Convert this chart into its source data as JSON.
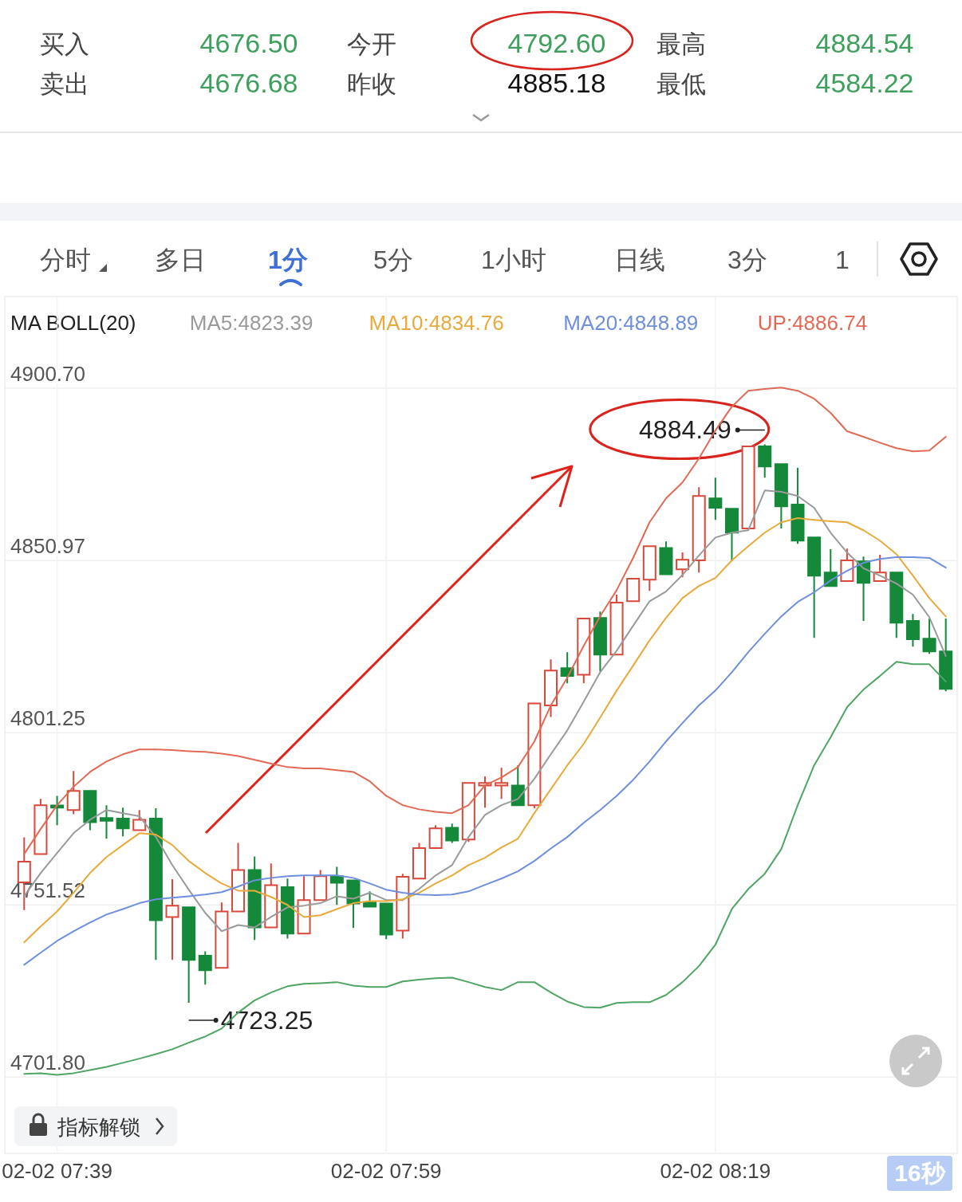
{
  "chart_data": {
    "type": "candlestick",
    "legend_title": "MA BOLL(20)",
    "categories": [
      null,
      null,
      "02-02 07:39",
      null,
      null,
      null,
      null,
      null,
      null,
      null,
      null,
      null,
      null,
      null,
      null,
      null,
      null,
      null,
      null,
      null,
      null,
      null,
      "02-02 07:59",
      null,
      null,
      null,
      null,
      null,
      null,
      null,
      null,
      null,
      null,
      null,
      null,
      null,
      null,
      null,
      null,
      null,
      null,
      null,
      "02-02 08:19",
      null,
      null,
      null,
      null,
      null,
      null,
      null,
      null,
      null,
      null,
      null,
      null,
      null,
      null
    ],
    "ohlc": [
      [
        4758,
        4771,
        4750,
        4764
      ],
      [
        4766.2,
        4782.1,
        4766,
        4780.3
      ],
      [
        4780.2,
        4783,
        4774.5,
        4779.6
      ],
      [
        4778.9,
        4790.2,
        4777.7,
        4784.4
      ],
      [
        4784.4,
        4784.4,
        4773.1,
        4775.4
      ],
      [
        4776.6,
        4780.3,
        4770.6,
        4775.8
      ],
      [
        4776.4,
        4779.6,
        4771.3,
        4773.6
      ],
      [
        4773.1,
        4778.9,
        4773.1,
        4776.1
      ],
      [
        4776.4,
        4779.4,
        4735.6,
        4747.1
      ],
      [
        4748,
        4758.9,
        4735.6,
        4751.3
      ],
      [
        4750.8,
        4750.8,
        4723.25,
        4735.6
      ],
      [
        4736.8,
        4738.1,
        4728.5,
        4732.6
      ],
      [
        4733.3,
        4752.2,
        4733.3,
        4749.6
      ],
      [
        4749.6,
        4769.4,
        4749.6,
        4761.6
      ],
      [
        4761.6,
        4765.5,
        4741.4,
        4745
      ],
      [
        4745,
        4763.5,
        4745,
        4757.2
      ],
      [
        4756.6,
        4759.1,
        4741.8,
        4743.2
      ],
      [
        4743.2,
        4759.8,
        4743.2,
        4752.9
      ],
      [
        4752.9,
        4761.6,
        4752.9,
        4759.8
      ],
      [
        4759.8,
        4762.5,
        4751.5,
        4757.9
      ],
      [
        4758.6,
        4758.6,
        4744.8,
        4751.9
      ],
      [
        4752.2,
        4755.4,
        4750.8,
        4751
      ],
      [
        4751.9,
        4751.9,
        4741.6,
        4742.9
      ],
      [
        4744.1,
        4760.5,
        4741.8,
        4759.6
      ],
      [
        4759.1,
        4769.4,
        4759.1,
        4767.9
      ],
      [
        4767.9,
        4774.5,
        4767.9,
        4773.6
      ],
      [
        4773.8,
        4775,
        4769.4,
        4770.1
      ],
      [
        4770.4,
        4786.7,
        4769.7,
        4786.7
      ],
      [
        4786,
        4788.6,
        4779.6,
        4786.7
      ],
      [
        4786,
        4791.1,
        4782.1,
        4786.7
      ],
      [
        4786,
        4791.8,
        4780.3,
        4780.3
      ],
      [
        4780.3,
        4809.7,
        4779.4,
        4809.7
      ],
      [
        4809.1,
        4822.4,
        4805.8,
        4819.2
      ],
      [
        4819.9,
        4824.5,
        4815.5,
        4817.6
      ],
      [
        4818,
        4834.2,
        4815.5,
        4834.2
      ],
      [
        4834.4,
        4836.2,
        4818.9,
        4823.8
      ],
      [
        4823.8,
        4841.1,
        4823.8,
        4838.8
      ],
      [
        4839.2,
        4845.7,
        4839.2,
        4845.7
      ],
      [
        4845.4,
        4855.1,
        4842.2,
        4855.1
      ],
      [
        4854.6,
        4856.5,
        4847,
        4847
      ],
      [
        4848.4,
        4853.3,
        4846.1,
        4851.2
      ],
      [
        4851,
        4872.1,
        4847.5,
        4869.6
      ],
      [
        4868.9,
        4874.9,
        4862.7,
        4866.2
      ],
      [
        4865.9,
        4865.9,
        4850.7,
        4859
      ],
      [
        4860.2,
        4883.9,
        4860.2,
        4883.9
      ],
      [
        4883.9,
        4884.49,
        4874.9,
        4878.1
      ],
      [
        4878.8,
        4878.8,
        4860.2,
        4866.6
      ],
      [
        4867.1,
        4877.7,
        4855.8,
        4856.7
      ],
      [
        4857.6,
        4857.6,
        4828.6,
        4846.6
      ],
      [
        4847.5,
        4854.2,
        4843.6,
        4843.6
      ],
      [
        4845,
        4854.4,
        4845,
        4851
      ],
      [
        4850.7,
        4852.1,
        4833.5,
        4844.5
      ],
      [
        4845,
        4852.6,
        4845,
        4847.5
      ],
      [
        4847.5,
        4847.5,
        4828.6,
        4833
      ],
      [
        4833.5,
        4835.5,
        4826.1,
        4828.2
      ],
      [
        4828.4,
        4834.2,
        4824,
        4824.7
      ],
      [
        4824.7,
        4834.2,
        4813.2,
        4813.9
      ]
    ],
    "series": [
      {
        "type": "line",
        "name": "MA5:4823.39",
        "color": "#9a9a9a",
        "values": [
          4754.0,
          4760.7,
          4766.5,
          4772.2,
          4776.1,
          4778.9,
          4778.0,
          4777.1,
          4771.1,
          4763.0,
          4755.9,
          4749.2,
          4743.9,
          4745.7,
          4745.0,
          4748.0,
          4750.8,
          4751.3,
          4752.0,
          4754.0,
          4753.3,
          4755.0,
          4752.9,
          4752.9,
          4756.1,
          4760.0,
          4763.0,
          4771.1,
          4777.5,
          4780.3,
          4782.1,
          4787.9,
          4795.0,
          4801.9,
          4810.2,
          4818.7,
          4824.9,
          4832.1,
          4839.2,
          4842.0,
          4846.8,
          4852.4,
          4857.6,
          4859.0,
          4859.7,
          4871.2,
          4870.8,
          4869.6,
          4866.2,
          4859.0,
          4853.3,
          4848.7,
          4846.6,
          4844.3,
          4841.1,
          4834.6,
          4823.4
        ]
      },
      {
        "type": "line",
        "name": "MA10:4834.76",
        "color": "#e8aa3a",
        "values": [
          4740.7,
          4745.3,
          4749.6,
          4755.0,
          4760.7,
          4765.3,
          4768.8,
          4772.2,
          4771.8,
          4768.8,
          4764.2,
          4760.7,
          4757.7,
          4755.6,
          4755.6,
          4753.8,
          4751.5,
          4748.0,
          4748.5,
          4750.3,
          4752.0,
          4752.6,
          4752.6,
          4753.1,
          4755.0,
          4757.7,
          4760.0,
          4763.0,
          4765.1,
          4768.1,
          4770.6,
          4778.0,
          4784.9,
          4791.8,
          4798.0,
          4805.6,
          4813.4,
          4820.6,
          4827.9,
          4834.4,
          4840.1,
          4843.6,
          4845.9,
          4851.0,
          4855.1,
          4859.0,
          4862.0,
          4863.2,
          4862.7,
          4862.3,
          4862.0,
          4859.7,
          4856.7,
          4852.8,
          4846.6,
          4840.1,
          4834.8
        ]
      },
      {
        "type": "line",
        "name": "MA20:4848.89",
        "color": "#6f8fdc",
        "values": [
          4734.2,
          4737.7,
          4741.1,
          4743.9,
          4746.4,
          4748.7,
          4750.3,
          4752.0,
          4753.1,
          4753.6,
          4754.0,
          4754.5,
          4755.2,
          4756.8,
          4758.6,
          4759.3,
          4759.8,
          4760.0,
          4760.0,
          4760.0,
          4759.3,
          4757.7,
          4755.9,
          4755.0,
          4754.5,
          4754.3,
          4754.5,
          4755.4,
          4757.3,
          4759.1,
          4761.2,
          4764.2,
          4767.8,
          4771.1,
          4775.2,
          4778.9,
          4783.0,
          4787.6,
          4792.9,
          4798.7,
          4804.0,
          4809.1,
          4813.4,
          4818.7,
          4824.5,
          4829.8,
          4834.8,
          4839.0,
          4841.8,
          4845.2,
          4848.0,
          4850.3,
          4851.4,
          4851.9,
          4851.9,
          4851.7,
          4848.9
        ]
      },
      {
        "type": "line",
        "name": "UP:4886.74",
        "color": "#e06a55",
        "values": [
          4766.2,
          4773.4,
          4780.3,
          4785.6,
          4789.9,
          4792.9,
          4795.0,
          4796.4,
          4796.4,
          4796.2,
          4795.9,
          4795.7,
          4795.2,
          4794.5,
          4793.4,
          4792.3,
          4791.3,
          4790.9,
          4790.9,
          4790.4,
          4789.9,
          4787.2,
          4783.0,
          4780.3,
          4779.1,
          4778.4,
          4778.0,
          4780.3,
          4786.0,
          4788.3,
          4791.3,
          4798.7,
          4809.1,
          4817.1,
          4826.3,
          4834.9,
          4842.4,
          4851.7,
          4862.0,
          4868.9,
          4873.5,
          4880.4,
          4888.5,
          4895.4,
          4900.0,
          4900.5,
          4900.9,
          4900.0,
          4897.7,
          4893.6,
          4888.3,
          4886.7,
          4885.0,
          4883.4,
          4882.5,
          4882.7,
          4886.7
        ]
      },
      {
        "type": "line",
        "color": "#4fa564",
        "values": [
          4702.7,
          4702.9,
          4702.4,
          4702.9,
          4703.8,
          4704.7,
          4705.9,
          4707.1,
          4708.4,
          4709.8,
          4711.7,
          4713.5,
          4715.8,
          4720.4,
          4723.9,
          4726.2,
          4728.0,
          4728.7,
          4728.9,
          4729.2,
          4728.2,
          4727.8,
          4727.8,
          4729.4,
          4729.9,
          4730.3,
          4730.5,
          4729.2,
          4727.8,
          4726.9,
          4729.2,
          4729.2,
          4726.2,
          4723.6,
          4722.0,
          4721.8,
          4723.2,
          4723.4,
          4723.4,
          4725.5,
          4729.2,
          4733.8,
          4740.0,
          4750.3,
          4756.1,
          4760.5,
          4767.6,
          4780.3,
          4791.8,
          4799.9,
          4808.6,
          4813.7,
          4817.6,
          4821.7,
          4821.0,
          4821.0,
          4816.0
        ]
      }
    ],
    "ylim": [
      4680.2,
      4927.2
    ],
    "yticks": [
      {
        "value": 4900.7,
        "label": "4900.70"
      },
      {
        "value": 4850.97,
        "label": "4850.97"
      },
      {
        "value": 4801.25,
        "label": "4801.25"
      },
      {
        "value": 4751.52,
        "label": "4751.52"
      },
      {
        "value": 4701.8,
        "label": "4701.80"
      }
    ],
    "grid": true,
    "legend": "top",
    "annotations": [
      "买入",
      "4676.50",
      "今开",
      "4792.60",
      "最高",
      "4884.54",
      "卖出",
      "4676.68",
      "昨收",
      "4885.18",
      "最低",
      "4584.22",
      "分时",
      "多日",
      "1分",
      "5分",
      "1小时",
      "日线",
      "3分",
      "1",
      "指标解锁",
      "16秒",
      "4884.49",
      "4723.25"
    ]
  }
}
